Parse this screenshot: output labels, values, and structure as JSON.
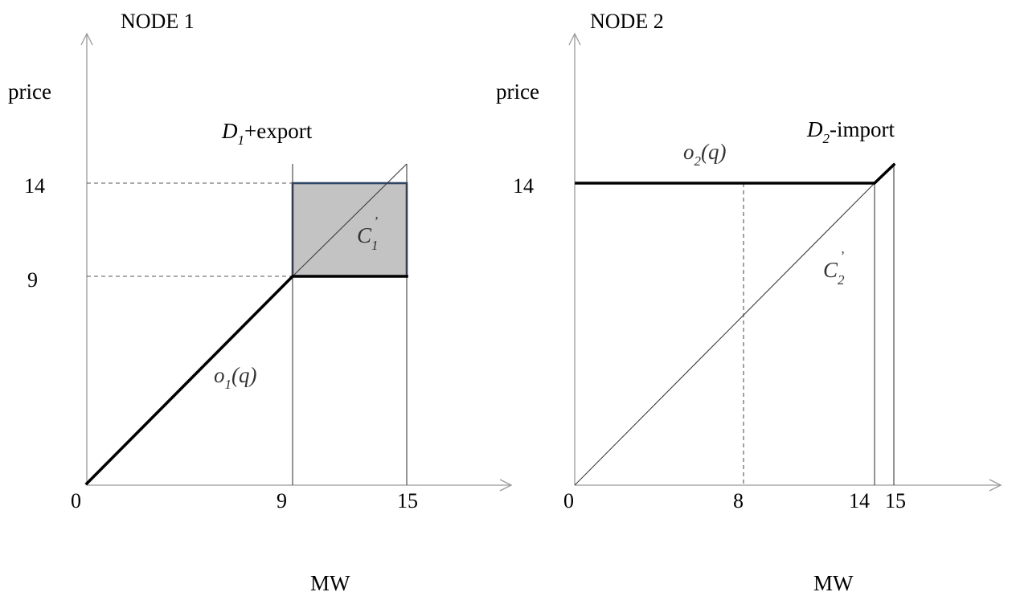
{
  "node1": {
    "title": "NODE 1",
    "ylabel": "price",
    "xlabel": "MW",
    "demand_label_main": "D",
    "demand_label_sub": "1",
    "demand_label_suffix": "+export",
    "area_label_main": "C",
    "area_label_sub": "1",
    "area_label_prime": "’",
    "offer_label_main": "o",
    "offer_label_sub": "1",
    "offer_label_suffix": "(q)",
    "x_ticks": [
      "0",
      "9",
      "15"
    ],
    "y_ticks": [
      "14",
      "9"
    ]
  },
  "node2": {
    "title": "NODE 2",
    "ylabel": "price",
    "xlabel": "MW",
    "demand_label_main": "D",
    "demand_label_sub": "2",
    "demand_label_suffix": "-import",
    "area_label_main": "C",
    "area_label_sub": "2",
    "area_label_prime": "’",
    "offer_label_main": "o",
    "offer_label_sub": "2",
    "offer_label_suffix": "(q)",
    "x_ticks": [
      "0",
      "8",
      "14",
      "15"
    ],
    "y_ticks": [
      "14"
    ]
  },
  "colors": {
    "shaded_area": "#c3c3c3",
    "shaded_border": "#2e4566",
    "axis": "#9a9a9a"
  }
}
